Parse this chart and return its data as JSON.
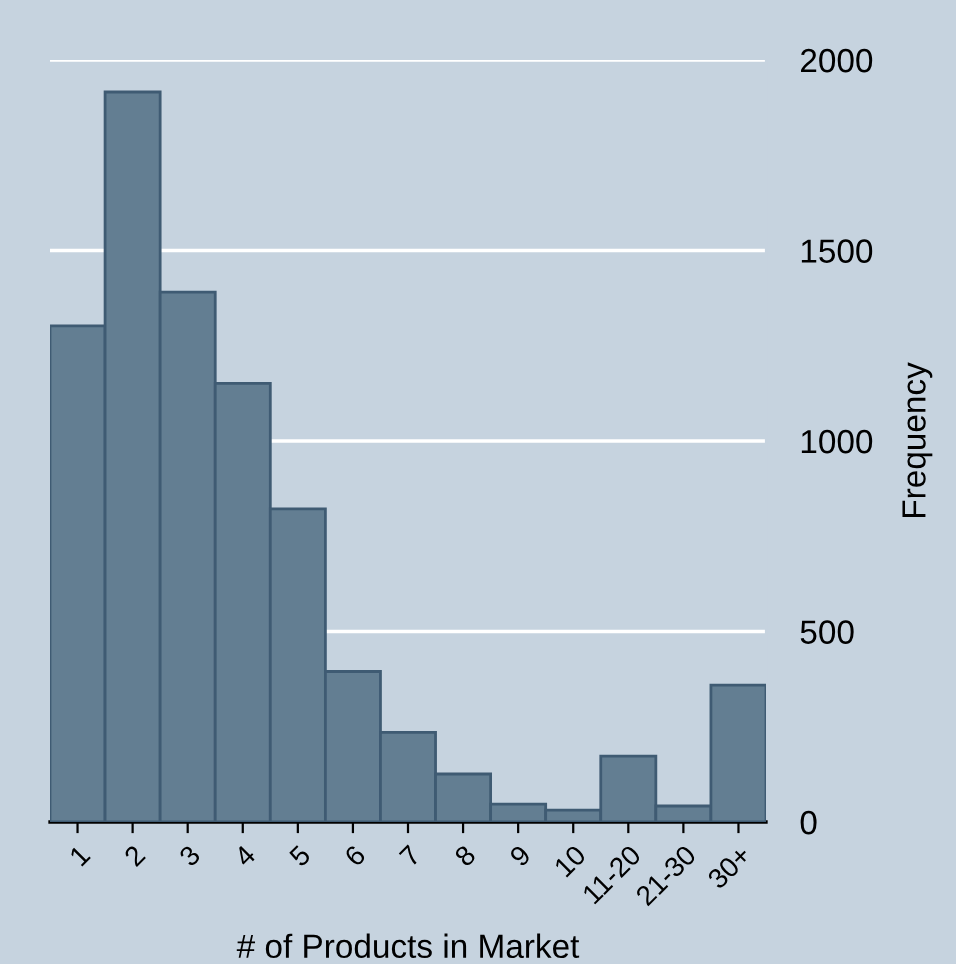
{
  "chart_data": {
    "type": "bar",
    "xlabel": "# of Products in Market",
    "ylabel": "Frequency",
    "categories": [
      "1",
      "2",
      "3",
      "4",
      "5",
      "6",
      "7",
      "8",
      "9",
      "10",
      "11-20",
      "21-30",
      "30+"
    ],
    "values": [
      1302,
      1916,
      1391,
      1151,
      822,
      395,
      235,
      126,
      47,
      31,
      173,
      42,
      359
    ],
    "color": "#637e92",
    "ylim": [
      0,
      2000
    ],
    "yticks": [
      0,
      500,
      1000,
      1500,
      2000
    ],
    "grid": "y"
  }
}
